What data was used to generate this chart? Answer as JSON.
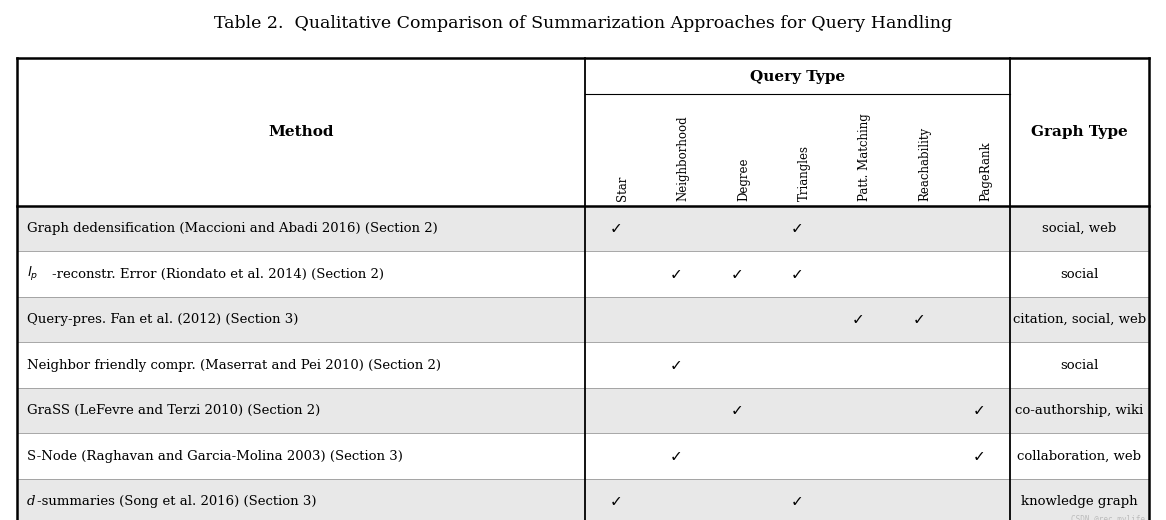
{
  "title": "Table 2.  Qualitative Comparison of Summarization Approaches for Query Handling",
  "title_fontsize": 12.5,
  "col_header_main": "Method",
  "col_header_query": "Query Type",
  "col_header_graph": "Graph Type",
  "query_cols": [
    "Star",
    "Neighborhood",
    "Degree",
    "Triangles",
    "Patt. Matching",
    "Reachability",
    "PageRank"
  ],
  "rows": [
    {
      "method": "Graph dedensification (Maccioni and Abadi 2016) (Section 2)",
      "method_prefix": "",
      "method_prefix_italic": false,
      "checks": [
        1,
        0,
        0,
        1,
        0,
        0,
        0
      ],
      "graph_type": "social, web",
      "shaded": true
    },
    {
      "method": "-reconstr. Error (Riondato et al. 2014) (Section 2)",
      "method_prefix": "l",
      "method_prefix_sub": "p",
      "method_prefix_italic": true,
      "checks": [
        0,
        1,
        1,
        1,
        0,
        0,
        0
      ],
      "graph_type": "social",
      "shaded": false
    },
    {
      "method": "Query-pres. Fan et al. (2012) (Section 3)",
      "method_prefix": "",
      "method_prefix_italic": false,
      "checks": [
        0,
        0,
        0,
        0,
        1,
        1,
        0
      ],
      "graph_type": "citation, social, web",
      "shaded": true
    },
    {
      "method": "Neighbor friendly compr. (Maserrat and Pei 2010) (Section 2)",
      "method_prefix": "",
      "method_prefix_italic": false,
      "checks": [
        0,
        1,
        0,
        0,
        0,
        0,
        0
      ],
      "graph_type": "social",
      "shaded": false
    },
    {
      "method": "GraSS (LeFevre and Terzi 2010) (Section 2)",
      "method_prefix": "",
      "method_prefix_italic": false,
      "checks": [
        0,
        0,
        1,
        0,
        0,
        0,
        1
      ],
      "graph_type": "co-authorship, wiki",
      "shaded": true
    },
    {
      "method": "S-Node (Raghavan and Garcia-Molina 2003) (Section 3)",
      "method_prefix": "",
      "method_prefix_italic": false,
      "checks": [
        0,
        1,
        0,
        0,
        0,
        0,
        1
      ],
      "graph_type": "collaboration, web",
      "shaded": false
    },
    {
      "method": "-summaries (Song et al. 2016) (Section 3)",
      "method_prefix": "d",
      "method_prefix_italic": true,
      "checks": [
        1,
        0,
        0,
        1,
        0,
        0,
        0
      ],
      "graph_type": "knowledge graph",
      "shaded": true
    }
  ],
  "shaded_color": "#e8e8e8",
  "white_color": "#ffffff",
  "header_bg": "#ffffff",
  "check_mark": "✓",
  "watermark": "CSDN @rec_mylife",
  "background_color": "#ffffff",
  "fig_width": 11.66,
  "fig_height": 5.2,
  "dpi": 100
}
